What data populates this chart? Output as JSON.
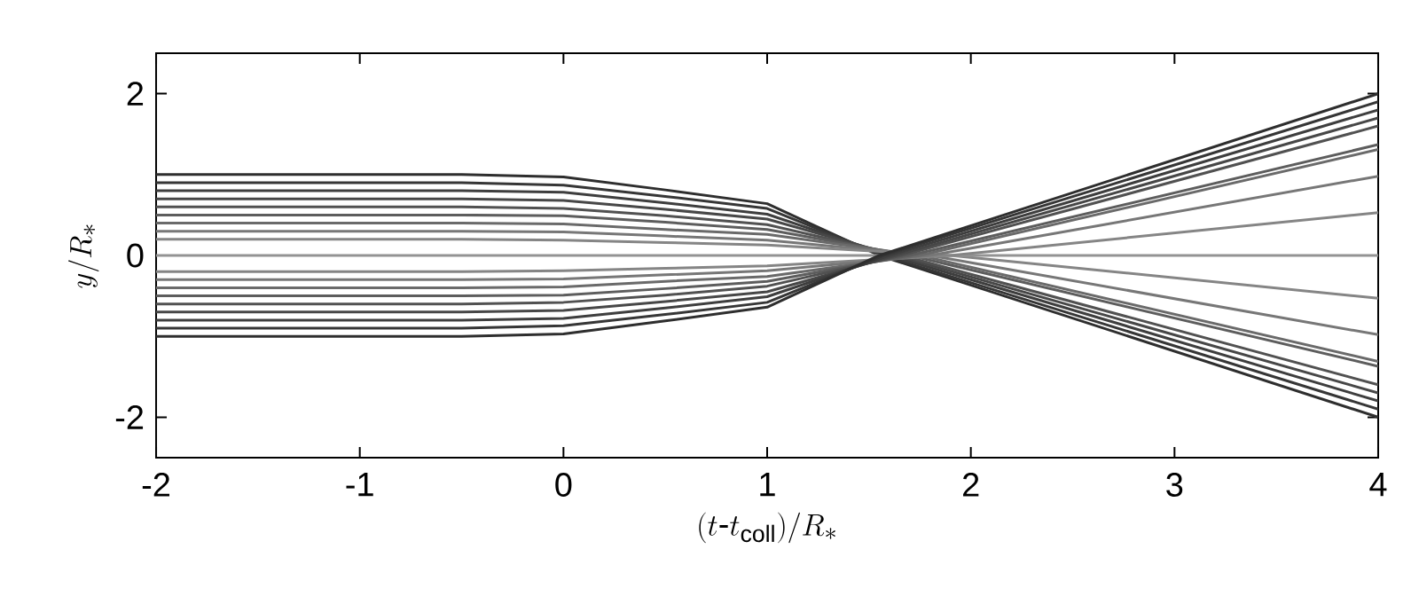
{
  "chart_data": {
    "type": "line",
    "xlabel": "(t\\mbox{-}t_{\\mathrm{coll}})/R_*",
    "ylabel": "y/R_*",
    "xlim": [
      -2,
      4
    ],
    "ylim": [
      -2.5,
      2.5
    ],
    "xticks": [
      -2,
      -1,
      0,
      1,
      2,
      3,
      4
    ],
    "yticks": [
      -2,
      0,
      2
    ],
    "grid": false,
    "marker": "none",
    "line_style": "solid",
    "series": [
      {
        "color": "#2e2e2e",
        "x": [
          -2,
          -0.5,
          0,
          0.5,
          1,
          1.55,
          4
        ],
        "values": [
          1,
          1,
          0.97,
          0.81,
          0.64,
          0,
          -2.0
        ]
      },
      {
        "color": "#363636",
        "x": [
          -2,
          -0.5,
          0,
          0.5,
          1,
          1.57,
          4
        ],
        "values": [
          0.9,
          0.9,
          0.87,
          0.73,
          0.58,
          0,
          -1.9
        ]
      },
      {
        "color": "#3e3e3e",
        "x": [
          -2,
          -0.5,
          0,
          0.5,
          1,
          1.6,
          4
        ],
        "values": [
          0.8,
          0.8,
          0.78,
          0.65,
          0.51,
          0,
          -1.8
        ]
      },
      {
        "color": "#474747",
        "x": [
          -2,
          -0.5,
          0,
          0.5,
          1,
          1.63,
          4
        ],
        "values": [
          0.7,
          0.7,
          0.68,
          0.57,
          0.45,
          0,
          -1.7
        ]
      },
      {
        "color": "#515151",
        "x": [
          -2,
          -0.5,
          0,
          0.5,
          1,
          1.66,
          4
        ],
        "values": [
          0.6,
          0.6,
          0.58,
          0.49,
          0.38,
          0,
          -1.6
        ]
      },
      {
        "color": "#5d5d5d",
        "x": [
          -2,
          -0.5,
          0,
          0.5,
          1,
          1.7,
          4
        ],
        "values": [
          0.5,
          0.5,
          0.49,
          0.41,
          0.32,
          0,
          -1.37
        ]
      },
      {
        "color": "#6a6a6a",
        "x": [
          -2,
          -0.5,
          0,
          0.5,
          1,
          1.75,
          4
        ],
        "values": [
          0.4,
          0.4,
          0.39,
          0.32,
          0.26,
          0,
          -1.31
        ]
      },
      {
        "color": "#777777",
        "x": [
          -2,
          -0.5,
          0,
          0.5,
          1,
          1.8,
          4
        ],
        "values": [
          0.3,
          0.3,
          0.29,
          0.24,
          0.19,
          0,
          -0.98
        ]
      },
      {
        "color": "#858585",
        "x": [
          -2,
          -0.5,
          0,
          0.5,
          1,
          1.9,
          4
        ],
        "values": [
          0.2,
          0.2,
          0.19,
          0.16,
          0.13,
          0,
          -0.53
        ]
      },
      {
        "color": "#939393",
        "x": [
          -2,
          4
        ],
        "values": [
          0,
          0
        ]
      },
      {
        "color": "#858585",
        "x": [
          -2,
          -0.5,
          0,
          0.5,
          1,
          1.9,
          4
        ],
        "values": [
          -0.2,
          -0.2,
          -0.19,
          -0.16,
          -0.13,
          0,
          0.53
        ]
      },
      {
        "color": "#777777",
        "x": [
          -2,
          -0.5,
          0,
          0.5,
          1,
          1.8,
          4
        ],
        "values": [
          -0.3,
          -0.3,
          -0.29,
          -0.24,
          -0.19,
          0,
          0.98
        ]
      },
      {
        "color": "#6a6a6a",
        "x": [
          -2,
          -0.5,
          0,
          0.5,
          1,
          1.75,
          4
        ],
        "values": [
          -0.4,
          -0.4,
          -0.39,
          -0.32,
          -0.26,
          0,
          1.31
        ]
      },
      {
        "color": "#5d5d5d",
        "x": [
          -2,
          -0.5,
          0,
          0.5,
          1,
          1.7,
          4
        ],
        "values": [
          -0.5,
          -0.5,
          -0.49,
          -0.41,
          -0.32,
          0,
          1.37
        ]
      },
      {
        "color": "#515151",
        "x": [
          -2,
          -0.5,
          0,
          0.5,
          1,
          1.66,
          4
        ],
        "values": [
          -0.6,
          -0.6,
          -0.58,
          -0.49,
          -0.38,
          0,
          1.6
        ]
      },
      {
        "color": "#474747",
        "x": [
          -2,
          -0.5,
          0,
          0.5,
          1,
          1.63,
          4
        ],
        "values": [
          -0.7,
          -0.7,
          -0.68,
          -0.57,
          -0.45,
          0,
          1.7
        ]
      },
      {
        "color": "#3e3e3e",
        "x": [
          -2,
          -0.5,
          0,
          0.5,
          1,
          1.6,
          4
        ],
        "values": [
          -0.8,
          -0.8,
          -0.78,
          -0.65,
          -0.51,
          0,
          1.8
        ]
      },
      {
        "color": "#363636",
        "x": [
          -2,
          -0.5,
          0,
          0.5,
          1,
          1.57,
          4
        ],
        "values": [
          -0.9,
          -0.9,
          -0.87,
          -0.73,
          -0.58,
          0,
          1.9
        ]
      },
      {
        "color": "#2e2e2e",
        "x": [
          -2,
          -0.5,
          0,
          0.5,
          1,
          1.55,
          4
        ],
        "values": [
          -1,
          -1,
          -0.97,
          -0.81,
          -0.64,
          0,
          2.0
        ]
      }
    ]
  }
}
